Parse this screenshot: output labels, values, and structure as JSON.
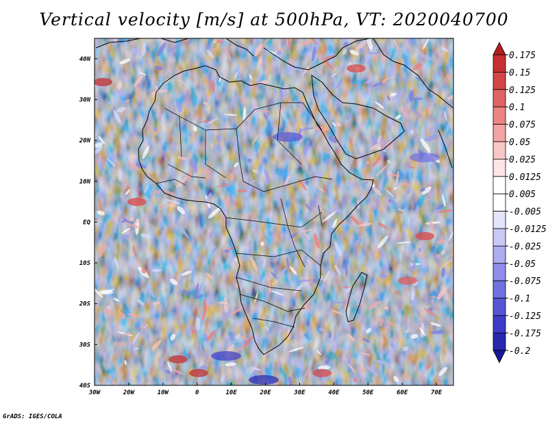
{
  "title": "Vertical velocity [m/s] at 500hPa, VT: 2020040700",
  "credit": "GrADS: IGES/COLA",
  "map": {
    "lon_range": [
      -30,
      75
    ],
    "lat_range": [
      -40,
      45
    ],
    "lon_ticks": [
      {
        "value": -30,
        "label": "30W"
      },
      {
        "value": -20,
        "label": "20W"
      },
      {
        "value": -10,
        "label": "10W"
      },
      {
        "value": 0,
        "label": "0"
      },
      {
        "value": 10,
        "label": "10E"
      },
      {
        "value": 20,
        "label": "20E"
      },
      {
        "value": 30,
        "label": "30E"
      },
      {
        "value": 40,
        "label": "40E"
      },
      {
        "value": 50,
        "label": "50E"
      },
      {
        "value": 60,
        "label": "60E"
      },
      {
        "value": 70,
        "label": "70E"
      }
    ],
    "lat_ticks": [
      {
        "value": 40,
        "label": "40N"
      },
      {
        "value": 30,
        "label": "30N"
      },
      {
        "value": 20,
        "label": "20N"
      },
      {
        "value": 10,
        "label": "10N"
      },
      {
        "value": 0,
        "label": "EQ"
      },
      {
        "value": -10,
        "label": "10S"
      },
      {
        "value": -20,
        "label": "20S"
      },
      {
        "value": -30,
        "label": "30S"
      },
      {
        "value": -40,
        "label": "40S"
      }
    ]
  },
  "colorbar": {
    "levels": [
      "0.175",
      "0.15",
      "0.125",
      "0.1",
      "0.075",
      "0.05",
      "0.025",
      "0.0125",
      "0.005",
      "-0.005",
      "-0.0125",
      "-0.025",
      "-0.05",
      "-0.075",
      "-0.1",
      "-0.125",
      "-0.175",
      "-0.2"
    ],
    "colors": [
      "#b31e1e",
      "#c62f2f",
      "#d44646",
      "#e06464",
      "#eb8585",
      "#f2a4a4",
      "#f8c6c6",
      "#fde5e5",
      "#ffffff",
      "#ffffff",
      "#e4e4fb",
      "#c9c9f6",
      "#acacf0",
      "#8e8ee9",
      "#7272e0",
      "#5656d5",
      "#3c3cc6",
      "#2727b0",
      "#16169a"
    ]
  }
}
